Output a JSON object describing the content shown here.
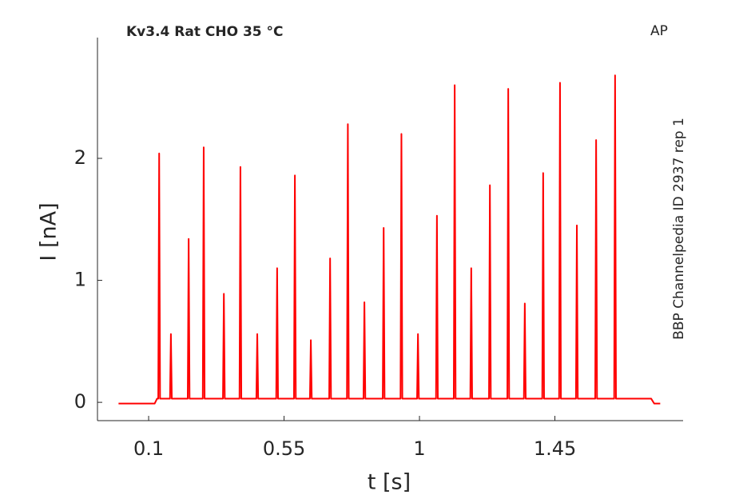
{
  "chart_data": {
    "type": "line",
    "title": "Kv3.4  Rat  CHO  35 °C",
    "annotations": [
      "AP",
      "BBP Channelpedia ID 2937 rep 1"
    ],
    "x_label": "t [s]",
    "y_label": "I [nA]",
    "color": "#ff0000",
    "grid": false,
    "xlim": [
      -0.07,
      1.876
    ],
    "xticks": [
      0.1,
      0.55,
      1,
      1.45
    ],
    "ylim": [
      -0.15,
      2.99
    ],
    "yticks": [
      0,
      1,
      2
    ],
    "x": [
      0,
      0.12,
      0.128,
      0.132,
      0.135,
      0.138,
      0.171,
      0.174,
      0.177,
      0.23,
      0.233,
      0.236,
      0.28,
      0.283,
      0.286,
      0.347,
      0.35,
      0.353,
      0.402,
      0.405,
      0.408,
      0.458,
      0.461,
      0.464,
      0.524,
      0.527,
      0.53,
      0.583,
      0.586,
      0.589,
      0.636,
      0.639,
      0.642,
      0.7,
      0.703,
      0.706,
      0.759,
      0.762,
      0.765,
      0.814,
      0.817,
      0.82,
      0.878,
      0.881,
      0.884,
      0.937,
      0.94,
      0.943,
      0.992,
      0.995,
      0.998,
      1.055,
      1.058,
      1.061,
      1.114,
      1.117,
      1.12,
      1.169,
      1.172,
      1.175,
      1.231,
      1.234,
      1.237,
      1.292,
      1.295,
      1.298,
      1.347,
      1.35,
      1.353,
      1.408,
      1.411,
      1.414,
      1.464,
      1.467,
      1.47,
      1.52,
      1.523,
      1.526,
      1.584,
      1.587,
      1.59,
      1.647,
      1.65,
      1.653,
      1.77,
      1.78,
      1.8
    ],
    "values": [
      -0.01,
      -0.01,
      0.03,
      0.03,
      2.04,
      0.03,
      0.03,
      0.56,
      0.03,
      0.03,
      1.34,
      0.03,
      0.03,
      2.09,
      0.03,
      0.03,
      0.89,
      0.03,
      0.03,
      1.93,
      0.03,
      0.03,
      0.56,
      0.03,
      0.03,
      1.1,
      0.03,
      0.03,
      1.86,
      0.03,
      0.03,
      0.51,
      0.03,
      0.03,
      1.18,
      0.03,
      0.03,
      2.28,
      0.03,
      0.03,
      0.82,
      0.03,
      0.03,
      1.43,
      0.03,
      0.03,
      2.2,
      0.03,
      0.03,
      0.56,
      0.03,
      0.03,
      1.53,
      0.03,
      0.03,
      2.6,
      0.03,
      0.03,
      1.1,
      0.03,
      0.03,
      1.78,
      0.03,
      0.03,
      2.57,
      0.03,
      0.03,
      0.81,
      0.03,
      0.03,
      1.88,
      0.03,
      0.03,
      2.62,
      0.03,
      0.03,
      1.45,
      0.03,
      0.03,
      2.15,
      0.03,
      0.03,
      2.68,
      0.03,
      0.03,
      -0.01,
      -0.01
    ]
  }
}
